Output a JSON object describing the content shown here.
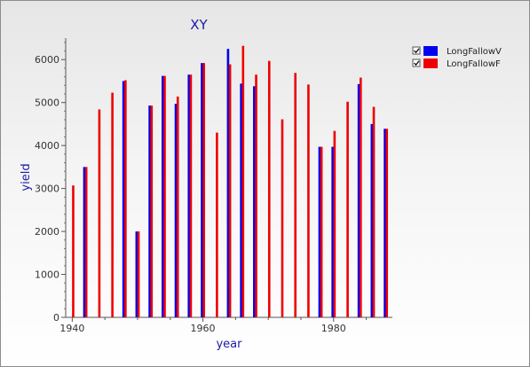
{
  "chart_data": {
    "type": "bar",
    "title": "XY",
    "xlabel": "year",
    "ylabel": "yield",
    "xlim": [
      1939,
      1989
    ],
    "ylim": [
      0,
      6500
    ],
    "xticks": [
      1940,
      1960,
      1980
    ],
    "yticks": [
      0,
      1000,
      2000,
      3000,
      4000,
      5000,
      6000
    ],
    "grid": false,
    "legend": "top-right",
    "series": [
      {
        "name": "LongFallowV",
        "color": "#0000ee",
        "x": [
          1942,
          1948,
          1950,
          1952,
          1954,
          1956,
          1958,
          1960,
          1964,
          1966,
          1968,
          1978,
          1980,
          1984,
          1986,
          1988
        ],
        "values": [
          3500,
          5500,
          2000,
          4930,
          5620,
          4970,
          5650,
          5920,
          6250,
          5440,
          5380,
          3970,
          3970,
          5430,
          4500,
          4390
        ]
      },
      {
        "name": "LongFallowF",
        "color": "#ee0000",
        "x": [
          1940,
          1942,
          1944,
          1946,
          1948,
          1950,
          1952,
          1954,
          1956,
          1958,
          1960,
          1962,
          1964,
          1966,
          1968,
          1970,
          1972,
          1974,
          1976,
          1978,
          1980,
          1982,
          1984,
          1986,
          1988
        ],
        "values": [
          3070,
          3500,
          4840,
          5230,
          5520,
          2000,
          4930,
          5620,
          5140,
          5650,
          5920,
          4300,
          5890,
          6320,
          5650,
          5970,
          4610,
          5690,
          5420,
          3970,
          4340,
          5020,
          5580,
          4900,
          4390
        ]
      }
    ]
  }
}
